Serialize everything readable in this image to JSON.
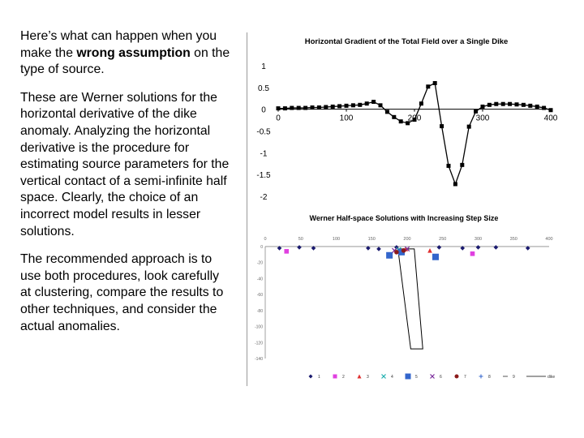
{
  "text": {
    "p1_before": "Here’s what can happen when you make the ",
    "p1_bold": "wrong assumption",
    "p1_after": " on the type of source.",
    "p2": "These are Werner solutions for the horizontal derivative of the dike anomaly. Analyzing the horizontal derivative is the procedure for estimating source parameters for the vertical contact of a semi-infinite half space. Clearly, the choice of an incorrect model results in lesser solutions.",
    "p3": "The recommended approach is to use both procedures, look carefully at clustering, compare the results to other techniques, and consider the actual anomalies."
  },
  "chart_data": [
    {
      "type": "line",
      "title": "Horizontal Gradient of the Total Field over a Single Dike",
      "xlim": [
        0,
        400
      ],
      "ylim": [
        -2,
        1
      ],
      "x_ticks": [
        0,
        100,
        200,
        300,
        400
      ],
      "y_ticks": [
        1,
        0.5,
        0,
        -0.5,
        -1,
        -1.5,
        -2
      ],
      "y_tick_labels": [
        "1",
        "0.5",
        "0",
        "-0.5",
        "-1",
        "-1.5",
        "-2"
      ],
      "color": "#000000",
      "series": [
        {
          "x": [
            0,
            10,
            20,
            30,
            40,
            50,
            60,
            70,
            80,
            90,
            100,
            110,
            120,
            130,
            140,
            150,
            160,
            170,
            180,
            190,
            200,
            210,
            220,
            230,
            240,
            250,
            260,
            270,
            280,
            290,
            300,
            310,
            320,
            330,
            340,
            350,
            360,
            370,
            380,
            390,
            400
          ],
          "values": [
            0.02,
            0.02,
            0.03,
            0.03,
            0.03,
            0.04,
            0.04,
            0.05,
            0.06,
            0.07,
            0.08,
            0.09,
            0.1,
            0.13,
            0.17,
            0.09,
            -0.06,
            -0.18,
            -0.28,
            -0.32,
            -0.24,
            0.13,
            0.52,
            0.6,
            -0.39,
            -1.3,
            -1.72,
            -1.28,
            -0.4,
            -0.05,
            0.06,
            0.1,
            0.12,
            0.12,
            0.12,
            0.11,
            0.1,
            0.08,
            0.06,
            0.03,
            -0.02
          ]
        }
      ]
    },
    {
      "type": "scatter",
      "title": "Werner Half-space Solutions with Increasing Step Size",
      "xlim": [
        0,
        400
      ],
      "ylim": [
        -140,
        5
      ],
      "x_tick_labels": [
        "0",
        "50",
        "100",
        "150",
        "200",
        "250",
        "300",
        "350",
        "400"
      ],
      "y_tick_labels": [
        "0",
        "-20",
        "-40",
        "-60",
        "-80",
        "-100",
        "-120",
        "-140"
      ],
      "series": [
        {
          "name": "1",
          "marker": "diamond",
          "color": "#1a1a6e",
          "x": [
            20,
            48,
            68,
            145,
            160,
            185,
            245,
            278,
            300,
            325,
            370
          ],
          "values": [
            -2,
            -1,
            -2,
            -2,
            -3,
            -1,
            -1,
            -2,
            -1,
            -1,
            -2
          ]
        },
        {
          "name": "2",
          "marker": "square",
          "color": "#e040e0",
          "x": [
            30,
            292
          ],
          "values": [
            -6,
            -9
          ]
        },
        {
          "name": "3",
          "marker": "triangle",
          "color": "#e03030",
          "x": [
            198,
            232
          ],
          "values": [
            -3,
            -5
          ]
        },
        {
          "name": "4",
          "marker": "x",
          "color": "#20b0b0",
          "x": [
            188
          ],
          "values": [
            -4
          ]
        },
        {
          "name": "5",
          "marker": "square",
          "color": "#3366cc",
          "x": [
            175,
            192,
            240
          ],
          "values": [
            -11,
            -7,
            -13
          ]
        },
        {
          "name": "6",
          "marker": "x",
          "color": "#7a2a9a",
          "x": [
            182,
            200
          ],
          "values": [
            -5,
            -3
          ]
        },
        {
          "name": "7",
          "marker": "circle",
          "color": "#8b1a1a",
          "x": [
            185,
            195
          ],
          "values": [
            -7,
            -5
          ]
        }
      ],
      "legend": [
        "1",
        "2",
        "3",
        "4",
        "5",
        "6",
        "7",
        "8",
        "9",
        "dike"
      ],
      "legend_position": "bottom",
      "dike": {
        "x_top": [
          187,
          210
        ],
        "x_bottom": [
          205,
          222
        ],
        "depth_top": -3,
        "depth_bottom": -128
      }
    }
  ]
}
